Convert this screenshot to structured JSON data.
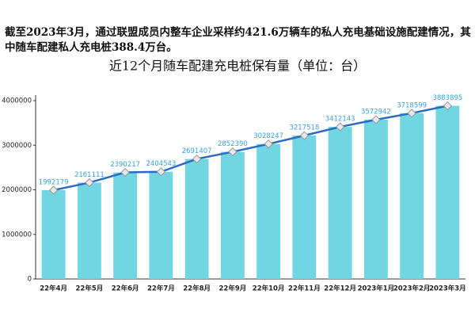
{
  "chart_data": {
    "type": "bar",
    "subtitle": "截至2023年3月，通过联盟成员内整车企业采样约421.6万辆车的私人充电基础设施配建情况，其中随车配建私人充电桩388.4万台。",
    "title": "近12个月随车配建充电桩保有量（单位：台）",
    "categories": [
      "22年4月",
      "22年5月",
      "22年6月",
      "22年7月",
      "22年8月",
      "22年9月",
      "22年10月",
      "22年11月",
      "22年12月",
      "2023年1月",
      "2023年2月",
      "2023年3月"
    ],
    "values": [
      1992179,
      2161111,
      2390217,
      2404543,
      2691407,
      2852390,
      3028247,
      3217518,
      3412143,
      3572942,
      3718599,
      3883895
    ],
    "color": "#72d6e2",
    "line_color": "#2a6cbf",
    "label_color": "#3aa0e0",
    "ylim": [
      0,
      4000000
    ],
    "yticks": [
      0,
      1000000,
      2000000,
      3000000,
      4000000
    ],
    "grid": false
  }
}
